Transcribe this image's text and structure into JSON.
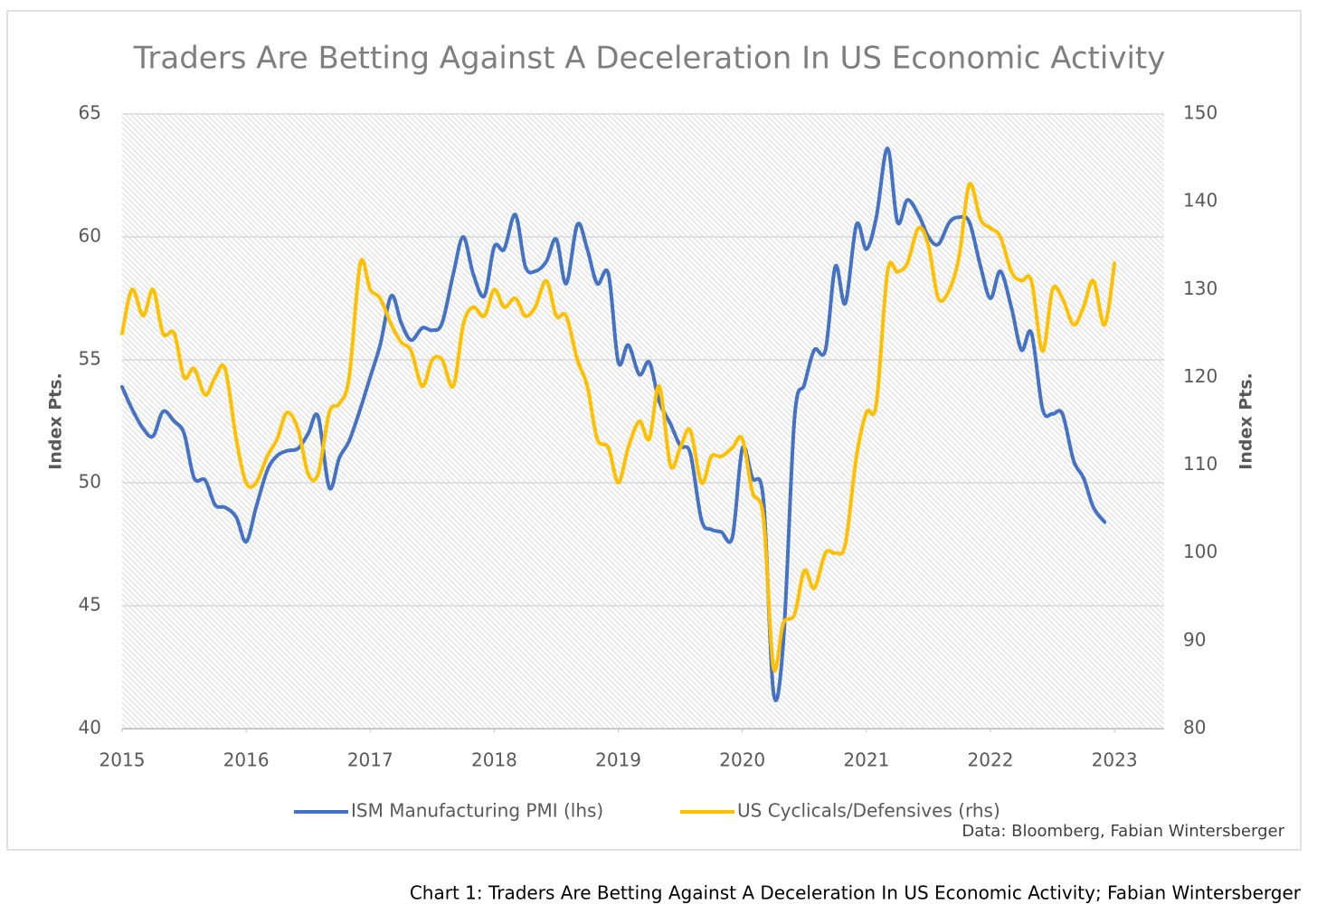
{
  "chart_data": {
    "type": "line",
    "title": "Traders Are Betting Against A Deceleration In US Economic Activity",
    "y_label": "Index Pts.",
    "y2_label": "Index Pts.",
    "source": "Data: Bloomberg, Fabian Wintersberger",
    "caption": "Chart 1: Traders Are Betting Against A Deceleration In US Economic Activity; Fabian Wintersberger",
    "xlim": [
      2015,
      2023.4
    ],
    "xticks": [
      2015,
      2016,
      2017,
      2018,
      2019,
      2020,
      2021,
      2022,
      2023
    ],
    "ylim": [
      40,
      65
    ],
    "yticks": [
      40,
      45,
      50,
      55,
      60,
      65
    ],
    "y2lim": [
      80,
      150
    ],
    "y2ticks": [
      80,
      90,
      100,
      110,
      120,
      130,
      140,
      150
    ],
    "grid": true,
    "legend": "bottom",
    "x": [
      2015.0,
      2015.08,
      2015.17,
      2015.25,
      2015.33,
      2015.42,
      2015.5,
      2015.58,
      2015.67,
      2015.75,
      2015.83,
      2015.92,
      2016.0,
      2016.08,
      2016.17,
      2016.25,
      2016.33,
      2016.42,
      2016.5,
      2016.58,
      2016.67,
      2016.75,
      2016.83,
      2016.92,
      2017.0,
      2017.08,
      2017.17,
      2017.25,
      2017.33,
      2017.42,
      2017.5,
      2017.58,
      2017.67,
      2017.75,
      2017.83,
      2017.92,
      2018.0,
      2018.08,
      2018.17,
      2018.25,
      2018.33,
      2018.42,
      2018.5,
      2018.58,
      2018.67,
      2018.75,
      2018.83,
      2018.92,
      2019.0,
      2019.08,
      2019.17,
      2019.25,
      2019.33,
      2019.42,
      2019.5,
      2019.58,
      2019.67,
      2019.75,
      2019.83,
      2019.92,
      2020.0,
      2020.08,
      2020.17,
      2020.25,
      2020.33,
      2020.42,
      2020.5,
      2020.58,
      2020.67,
      2020.75,
      2020.83,
      2020.92,
      2021.0,
      2021.08,
      2021.17,
      2021.25,
      2021.33,
      2021.42,
      2021.5,
      2021.58,
      2021.67,
      2021.75,
      2021.83,
      2021.92,
      2022.0,
      2022.08,
      2022.17,
      2022.25,
      2022.33,
      2022.42,
      2022.5,
      2022.58,
      2022.67,
      2022.75,
      2022.83,
      2022.92,
      2023.0
    ],
    "series": [
      {
        "name": "ISM Manufacturing PMI (lhs)",
        "color": "#4472c4",
        "axis": "y",
        "values": [
          53.9,
          53.0,
          52.2,
          51.9,
          52.9,
          52.5,
          52.0,
          50.2,
          50.1,
          49.1,
          49.0,
          48.6,
          47.6,
          49.0,
          50.5,
          51.1,
          51.3,
          51.4,
          52.0,
          52.7,
          49.8,
          51.0,
          51.7,
          53.0,
          54.3,
          55.6,
          57.6,
          56.5,
          55.8,
          56.3,
          56.2,
          56.5,
          58.5,
          60.0,
          58.5,
          57.6,
          59.6,
          59.5,
          60.9,
          58.8,
          58.6,
          59.0,
          59.9,
          58.1,
          60.5,
          59.5,
          58.1,
          58.5,
          54.9,
          55.6,
          54.4,
          54.9,
          53.3,
          52.4,
          51.5,
          51.2,
          48.5,
          48.1,
          48.0,
          47.8,
          51.4,
          50.2,
          49.3,
          41.5,
          43.5,
          52.6,
          54.0,
          55.4,
          55.4,
          58.8,
          57.3,
          60.5,
          59.5,
          60.8,
          63.6,
          60.6,
          61.5,
          60.9,
          60.0,
          59.7,
          60.6,
          60.8,
          60.6,
          58.8,
          57.5,
          58.6,
          57.1,
          55.4,
          56.1,
          53.0,
          52.8,
          52.8,
          50.9,
          50.2,
          49.0,
          48.4,
          null
        ]
      },
      {
        "name": "US Cyclicals/Defensives (rhs)",
        "color": "#ffc000",
        "axis": "y2",
        "values": [
          125,
          130,
          127,
          130,
          125,
          125,
          120,
          121,
          118,
          120,
          121,
          113,
          108,
          108,
          111,
          113,
          116,
          114,
          109,
          109,
          116,
          117,
          120,
          133,
          130,
          129,
          126,
          124,
          123,
          119,
          122,
          122,
          119,
          126,
          128,
          127,
          130,
          128,
          129,
          127,
          128,
          131,
          127,
          127,
          122,
          119,
          113,
          112,
          108,
          112,
          115,
          113,
          119,
          110,
          112,
          114,
          108,
          111,
          111,
          112,
          113,
          107,
          104,
          87,
          92,
          93,
          98,
          96,
          100,
          100,
          101,
          111,
          116,
          117,
          132,
          132,
          133,
          137,
          135,
          129,
          130,
          134,
          142,
          138,
          137,
          136,
          132,
          131,
          131,
          123,
          130,
          129,
          126,
          128,
          131,
          126,
          133
        ]
      }
    ]
  }
}
